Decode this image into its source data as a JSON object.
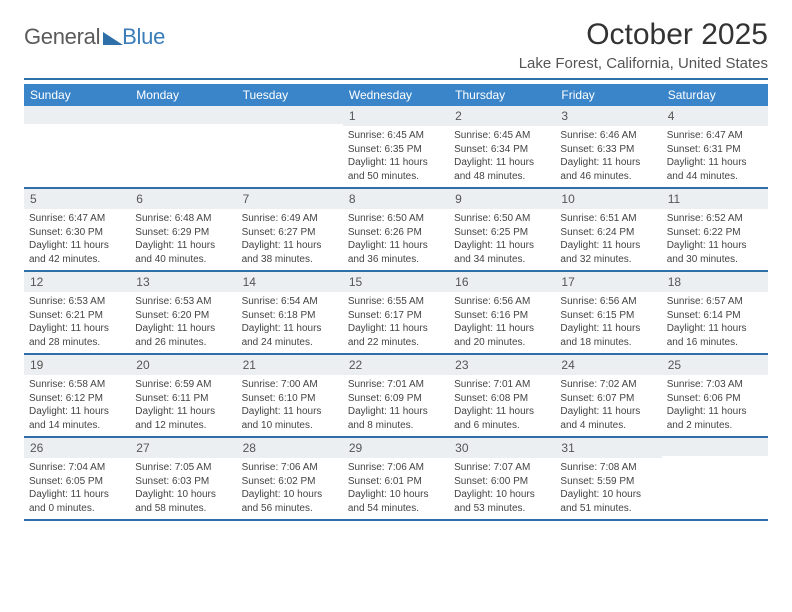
{
  "logo": {
    "text1": "General",
    "text2": "Blue"
  },
  "title": "October 2025",
  "location": "Lake Forest, California, United States",
  "colors": {
    "accent": "#2e6fa8",
    "header_bg": "#3a85c9",
    "daynum_bg": "#eceff1",
    "text": "#333333"
  },
  "days_of_week": [
    "Sunday",
    "Monday",
    "Tuesday",
    "Wednesday",
    "Thursday",
    "Friday",
    "Saturday"
  ],
  "weeks": [
    [
      {
        "num": "",
        "lines": [
          "",
          "",
          "",
          ""
        ]
      },
      {
        "num": "",
        "lines": [
          "",
          "",
          "",
          ""
        ]
      },
      {
        "num": "",
        "lines": [
          "",
          "",
          "",
          ""
        ]
      },
      {
        "num": "1",
        "lines": [
          "Sunrise: 6:45 AM",
          "Sunset: 6:35 PM",
          "Daylight: 11 hours",
          "and 50 minutes."
        ]
      },
      {
        "num": "2",
        "lines": [
          "Sunrise: 6:45 AM",
          "Sunset: 6:34 PM",
          "Daylight: 11 hours",
          "and 48 minutes."
        ]
      },
      {
        "num": "3",
        "lines": [
          "Sunrise: 6:46 AM",
          "Sunset: 6:33 PM",
          "Daylight: 11 hours",
          "and 46 minutes."
        ]
      },
      {
        "num": "4",
        "lines": [
          "Sunrise: 6:47 AM",
          "Sunset: 6:31 PM",
          "Daylight: 11 hours",
          "and 44 minutes."
        ]
      }
    ],
    [
      {
        "num": "5",
        "lines": [
          "Sunrise: 6:47 AM",
          "Sunset: 6:30 PM",
          "Daylight: 11 hours",
          "and 42 minutes."
        ]
      },
      {
        "num": "6",
        "lines": [
          "Sunrise: 6:48 AM",
          "Sunset: 6:29 PM",
          "Daylight: 11 hours",
          "and 40 minutes."
        ]
      },
      {
        "num": "7",
        "lines": [
          "Sunrise: 6:49 AM",
          "Sunset: 6:27 PM",
          "Daylight: 11 hours",
          "and 38 minutes."
        ]
      },
      {
        "num": "8",
        "lines": [
          "Sunrise: 6:50 AM",
          "Sunset: 6:26 PM",
          "Daylight: 11 hours",
          "and 36 minutes."
        ]
      },
      {
        "num": "9",
        "lines": [
          "Sunrise: 6:50 AM",
          "Sunset: 6:25 PM",
          "Daylight: 11 hours",
          "and 34 minutes."
        ]
      },
      {
        "num": "10",
        "lines": [
          "Sunrise: 6:51 AM",
          "Sunset: 6:24 PM",
          "Daylight: 11 hours",
          "and 32 minutes."
        ]
      },
      {
        "num": "11",
        "lines": [
          "Sunrise: 6:52 AM",
          "Sunset: 6:22 PM",
          "Daylight: 11 hours",
          "and 30 minutes."
        ]
      }
    ],
    [
      {
        "num": "12",
        "lines": [
          "Sunrise: 6:53 AM",
          "Sunset: 6:21 PM",
          "Daylight: 11 hours",
          "and 28 minutes."
        ]
      },
      {
        "num": "13",
        "lines": [
          "Sunrise: 6:53 AM",
          "Sunset: 6:20 PM",
          "Daylight: 11 hours",
          "and 26 minutes."
        ]
      },
      {
        "num": "14",
        "lines": [
          "Sunrise: 6:54 AM",
          "Sunset: 6:18 PM",
          "Daylight: 11 hours",
          "and 24 minutes."
        ]
      },
      {
        "num": "15",
        "lines": [
          "Sunrise: 6:55 AM",
          "Sunset: 6:17 PM",
          "Daylight: 11 hours",
          "and 22 minutes."
        ]
      },
      {
        "num": "16",
        "lines": [
          "Sunrise: 6:56 AM",
          "Sunset: 6:16 PM",
          "Daylight: 11 hours",
          "and 20 minutes."
        ]
      },
      {
        "num": "17",
        "lines": [
          "Sunrise: 6:56 AM",
          "Sunset: 6:15 PM",
          "Daylight: 11 hours",
          "and 18 minutes."
        ]
      },
      {
        "num": "18",
        "lines": [
          "Sunrise: 6:57 AM",
          "Sunset: 6:14 PM",
          "Daylight: 11 hours",
          "and 16 minutes."
        ]
      }
    ],
    [
      {
        "num": "19",
        "lines": [
          "Sunrise: 6:58 AM",
          "Sunset: 6:12 PM",
          "Daylight: 11 hours",
          "and 14 minutes."
        ]
      },
      {
        "num": "20",
        "lines": [
          "Sunrise: 6:59 AM",
          "Sunset: 6:11 PM",
          "Daylight: 11 hours",
          "and 12 minutes."
        ]
      },
      {
        "num": "21",
        "lines": [
          "Sunrise: 7:00 AM",
          "Sunset: 6:10 PM",
          "Daylight: 11 hours",
          "and 10 minutes."
        ]
      },
      {
        "num": "22",
        "lines": [
          "Sunrise: 7:01 AM",
          "Sunset: 6:09 PM",
          "Daylight: 11 hours",
          "and 8 minutes."
        ]
      },
      {
        "num": "23",
        "lines": [
          "Sunrise: 7:01 AM",
          "Sunset: 6:08 PM",
          "Daylight: 11 hours",
          "and 6 minutes."
        ]
      },
      {
        "num": "24",
        "lines": [
          "Sunrise: 7:02 AM",
          "Sunset: 6:07 PM",
          "Daylight: 11 hours",
          "and 4 minutes."
        ]
      },
      {
        "num": "25",
        "lines": [
          "Sunrise: 7:03 AM",
          "Sunset: 6:06 PM",
          "Daylight: 11 hours",
          "and 2 minutes."
        ]
      }
    ],
    [
      {
        "num": "26",
        "lines": [
          "Sunrise: 7:04 AM",
          "Sunset: 6:05 PM",
          "Daylight: 11 hours",
          "and 0 minutes."
        ]
      },
      {
        "num": "27",
        "lines": [
          "Sunrise: 7:05 AM",
          "Sunset: 6:03 PM",
          "Daylight: 10 hours",
          "and 58 minutes."
        ]
      },
      {
        "num": "28",
        "lines": [
          "Sunrise: 7:06 AM",
          "Sunset: 6:02 PM",
          "Daylight: 10 hours",
          "and 56 minutes."
        ]
      },
      {
        "num": "29",
        "lines": [
          "Sunrise: 7:06 AM",
          "Sunset: 6:01 PM",
          "Daylight: 10 hours",
          "and 54 minutes."
        ]
      },
      {
        "num": "30",
        "lines": [
          "Sunrise: 7:07 AM",
          "Sunset: 6:00 PM",
          "Daylight: 10 hours",
          "and 53 minutes."
        ]
      },
      {
        "num": "31",
        "lines": [
          "Sunrise: 7:08 AM",
          "Sunset: 5:59 PM",
          "Daylight: 10 hours",
          "and 51 minutes."
        ]
      },
      {
        "num": "",
        "lines": [
          "",
          "",
          "",
          ""
        ]
      }
    ]
  ]
}
